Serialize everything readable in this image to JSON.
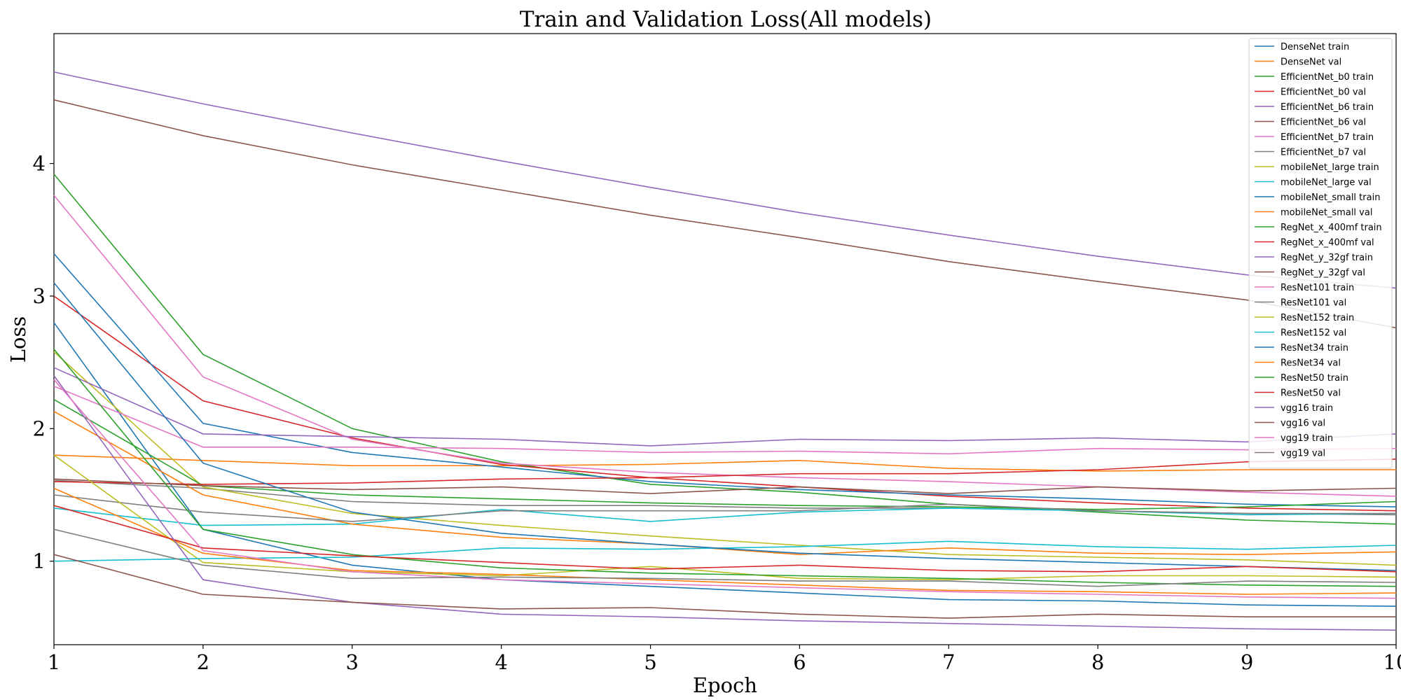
{
  "chart_data": {
    "type": "line",
    "title": "Train and Validation Loss(All models)",
    "xlabel": "Epoch",
    "ylabel": "Loss",
    "x": [
      1,
      2,
      3,
      4,
      5,
      6,
      7,
      8,
      9,
      10
    ],
    "xticks": [
      "1",
      "2",
      "3",
      "4",
      "5",
      "6",
      "7",
      "8",
      "9",
      "10"
    ],
    "yticks": [
      "1",
      "2",
      "3",
      "4"
    ],
    "xlim": [
      1,
      10
    ],
    "ylim": [
      0.37,
      4.98
    ],
    "grid": false,
    "legend_position": "top-right",
    "series": [
      {
        "name": "DenseNet train",
        "color": "#1f77b4",
        "values": [
          2.8,
          1.24,
          0.97,
          0.86,
          0.81,
          0.76,
          0.71,
          0.7,
          0.67,
          0.66
        ]
      },
      {
        "name": "DenseNet val",
        "color": "#ff7f0e",
        "values": [
          1.8,
          1.76,
          1.72,
          1.72,
          1.73,
          1.76,
          1.7,
          1.68,
          1.69,
          1.69
        ]
      },
      {
        "name": "EfficientNet_b0 train",
        "color": "#2ca02c",
        "values": [
          3.92,
          2.56,
          2.0,
          1.75,
          1.58,
          1.52,
          1.43,
          1.37,
          1.31,
          1.28
        ]
      },
      {
        "name": "EfficientNet_b0 val",
        "color": "#d62728",
        "values": [
          3.0,
          2.21,
          1.93,
          1.73,
          1.63,
          1.56,
          1.49,
          1.44,
          1.4,
          1.38
        ]
      },
      {
        "name": "EfficientNet_b6 train",
        "color": "#9467bd",
        "values": [
          4.69,
          4.45,
          4.23,
          4.02,
          3.82,
          3.63,
          3.46,
          3.3,
          3.16,
          3.06
        ]
      },
      {
        "name": "EfficientNet_b6 val",
        "color": "#8c564b",
        "values": [
          4.48,
          4.21,
          3.99,
          3.8,
          3.61,
          3.44,
          3.26,
          3.11,
          2.97,
          2.76
        ]
      },
      {
        "name": "EfficientNet_b7 train",
        "color": "#e377c2",
        "values": [
          3.76,
          2.39,
          1.92,
          1.74,
          1.67,
          1.63,
          1.6,
          1.56,
          1.52,
          1.49
        ]
      },
      {
        "name": "EfficientNet_b7 val",
        "color": "#7f7f7f",
        "values": [
          1.61,
          1.55,
          1.45,
          1.42,
          1.42,
          1.4,
          1.4,
          1.38,
          1.36,
          1.35
        ]
      },
      {
        "name": "mobileNet_large train",
        "color": "#bcbd22",
        "values": [
          2.58,
          1.56,
          1.36,
          1.27,
          1.19,
          1.12,
          1.05,
          1.03,
          1.01,
          0.97
        ]
      },
      {
        "name": "mobileNet_large val",
        "color": "#17becf",
        "values": [
          1.4,
          1.27,
          1.28,
          1.39,
          1.3,
          1.37,
          1.4,
          1.38,
          1.35,
          1.36
        ]
      },
      {
        "name": "mobileNet_small train",
        "color": "#1f77b4",
        "values": [
          3.32,
          2.04,
          1.82,
          1.71,
          1.6,
          1.54,
          1.5,
          1.47,
          1.43,
          1.41
        ]
      },
      {
        "name": "mobileNet_small val",
        "color": "#ff7f0e",
        "values": [
          2.13,
          1.5,
          1.28,
          1.18,
          1.13,
          1.05,
          1.1,
          1.06,
          1.05,
          1.07
        ]
      },
      {
        "name": "RegNet_x_400mf train",
        "color": "#2ca02c",
        "values": [
          2.22,
          1.57,
          1.5,
          1.47,
          1.44,
          1.42,
          1.41,
          1.39,
          1.41,
          1.45
        ]
      },
      {
        "name": "RegNet_x_400mf val",
        "color": "#d62728",
        "values": [
          1.6,
          1.58,
          1.59,
          1.62,
          1.63,
          1.66,
          1.66,
          1.69,
          1.75,
          1.77
        ]
      },
      {
        "name": "RegNet_y_32gf train",
        "color": "#9467bd",
        "values": [
          2.46,
          1.96,
          1.94,
          1.92,
          1.87,
          1.92,
          1.91,
          1.93,
          1.9,
          1.96
        ]
      },
      {
        "name": "RegNet_y_32gf val",
        "color": "#8c564b",
        "values": [
          1.62,
          1.57,
          1.54,
          1.56,
          1.51,
          1.56,
          1.51,
          1.56,
          1.53,
          1.55
        ]
      },
      {
        "name": "ResNet101 train",
        "color": "#e377c2",
        "values": [
          2.32,
          1.86,
          1.86,
          1.85,
          1.82,
          1.83,
          1.81,
          1.85,
          1.84,
          1.85
        ]
      },
      {
        "name": "ResNet101 val",
        "color": "#7f7f7f",
        "values": [
          1.5,
          1.37,
          1.3,
          1.38,
          1.38,
          1.38,
          1.43,
          1.38,
          1.36,
          1.36
        ]
      },
      {
        "name": "ResNet152 train",
        "color": "#bcbd22",
        "values": [
          1.8,
          0.99,
          0.92,
          0.89,
          0.96,
          0.87,
          0.86,
          0.89,
          0.89,
          0.88
        ]
      },
      {
        "name": "ResNet152 val",
        "color": "#17becf",
        "values": [
          1.0,
          1.02,
          1.03,
          1.1,
          1.09,
          1.11,
          1.15,
          1.11,
          1.09,
          1.12
        ]
      },
      {
        "name": "ResNet34 train",
        "color": "#1f77b4",
        "values": [
          3.1,
          1.74,
          1.37,
          1.21,
          1.13,
          1.06,
          1.02,
          0.99,
          0.96,
          0.93
        ]
      },
      {
        "name": "ResNet34 val",
        "color": "#ff7f0e",
        "values": [
          1.55,
          1.06,
          0.93,
          0.9,
          0.86,
          0.82,
          0.78,
          0.77,
          0.75,
          0.76
        ]
      },
      {
        "name": "ResNet50 train",
        "color": "#2ca02c",
        "values": [
          2.6,
          1.24,
          1.05,
          0.95,
          0.91,
          0.89,
          0.87,
          0.84,
          0.82,
          0.81
        ]
      },
      {
        "name": "ResNet50 val",
        "color": "#d62728",
        "values": [
          1.42,
          1.1,
          1.04,
          0.99,
          0.94,
          0.97,
          0.93,
          0.92,
          0.96,
          0.92
        ]
      },
      {
        "name": "vgg16 train",
        "color": "#9467bd",
        "values": [
          2.4,
          0.86,
          0.69,
          0.6,
          0.58,
          0.55,
          0.53,
          0.51,
          0.49,
          0.48
        ]
      },
      {
        "name": "vgg16 val",
        "color": "#8c564b",
        "values": [
          1.05,
          0.75,
          0.69,
          0.64,
          0.65,
          0.6,
          0.57,
          0.6,
          0.58,
          0.58
        ]
      },
      {
        "name": "vgg19 train",
        "color": "#e377c2",
        "values": [
          2.37,
          1.08,
          0.92,
          0.86,
          0.83,
          0.8,
          0.77,
          0.75,
          0.73,
          0.72
        ]
      },
      {
        "name": "vgg19 val",
        "color": "#7f7f7f",
        "values": [
          1.24,
          0.97,
          0.87,
          0.88,
          0.87,
          0.85,
          0.85,
          0.81,
          0.85,
          0.84
        ]
      }
    ]
  }
}
